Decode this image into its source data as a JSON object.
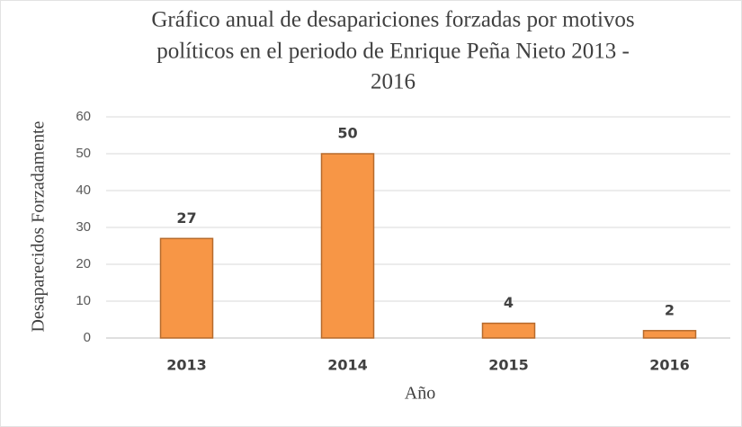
{
  "chart_data": {
    "type": "bar",
    "title": [
      "Gráfico anual de desapariciones forzadas por motivos",
      "políticos en el periodo de Enrique Peña Nieto 2013 -",
      "2016"
    ],
    "xlabel": "Año",
    "ylabel": "Desaparecidos Forzadamente",
    "categories": [
      "2013",
      "2014",
      "2015",
      "2016"
    ],
    "values": [
      27,
      50,
      4,
      2
    ],
    "color": "#f79646",
    "ylim": [
      0,
      60
    ],
    "yticks": [
      0,
      10,
      20,
      30,
      40,
      50,
      60
    ],
    "grid": true
  }
}
